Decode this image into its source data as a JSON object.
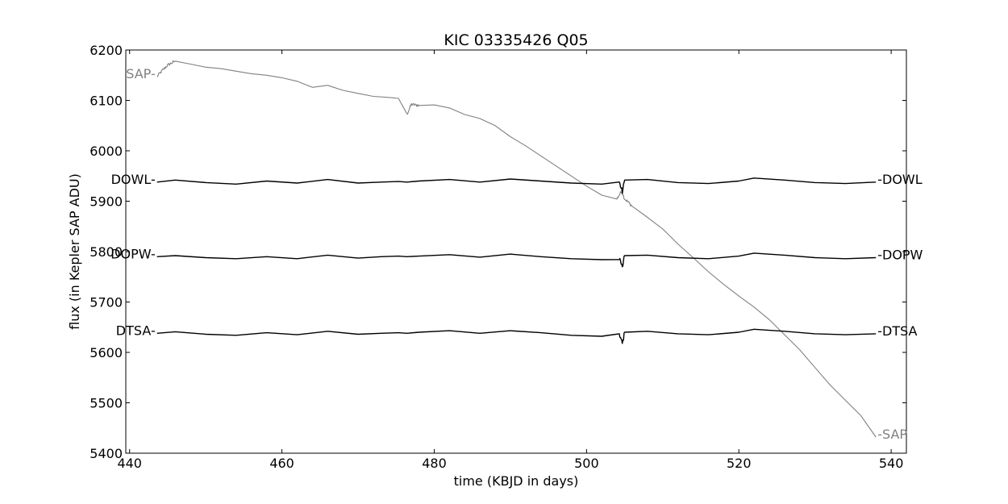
{
  "chart_data": {
    "type": "line",
    "title": "KIC 03335426 Q05",
    "xlabel": "time (KBJD in days)",
    "ylabel": "flux (in Kepler SAP ADU)",
    "xlim": [
      439.5,
      542
    ],
    "ylim": [
      5400,
      6200
    ],
    "xticks": [
      440,
      460,
      480,
      500,
      520,
      540
    ],
    "yticks": [
      5400,
      5500,
      5600,
      5700,
      5800,
      5900,
      6000,
      6100,
      6200
    ],
    "grid": false,
    "colors": {
      "SAP": "#808080",
      "DOWL": "#000000",
      "DOPW": "#000000",
      "DTSA": "#000000"
    },
    "series": [
      {
        "name": "SAP",
        "left_label": "SAP-",
        "right_label": "-SAP",
        "color": "#808080",
        "noise": 3,
        "x": [
          443.6,
          444.2,
          445.0,
          446.0,
          448.0,
          450.0,
          452.0,
          454.0,
          456.0,
          458.0,
          460.0,
          462.0,
          464.0,
          466.0,
          468.0,
          470.0,
          472.0,
          474.0,
          475.3,
          476.4,
          477.0,
          478.0,
          480.0,
          482.0,
          484.0,
          486.0,
          488.0,
          490.0,
          492.0,
          494.0,
          496.0,
          498.0,
          500.0,
          502.0,
          504.0,
          504.6,
          505.0,
          506.0,
          508.0,
          510.0,
          512.0,
          514.0,
          516.0,
          518.0,
          520.0,
          522.0,
          524.0,
          526.0,
          528.0,
          530.0,
          532.0,
          534.0,
          536.0,
          538.0
        ],
        "y": [
          6147,
          6158,
          6170,
          6178,
          6172,
          6166,
          6163,
          6158,
          6153,
          6150,
          6145,
          6138,
          6126,
          6130,
          6120,
          6114,
          6108,
          6106,
          6104,
          6072,
          6092,
          6090,
          6091,
          6085,
          6072,
          6064,
          6050,
          6028,
          6010,
          5990,
          5970,
          5950,
          5930,
          5912,
          5905,
          5920,
          5905,
          5890,
          5868,
          5845,
          5815,
          5788,
          5760,
          5735,
          5712,
          5690,
          5665,
          5635,
          5605,
          5570,
          5535,
          5505,
          5475,
          5432
        ]
      },
      {
        "name": "DOWL",
        "left_label": "DOWL-",
        "right_label": "-DOWL",
        "color": "#000000",
        "noise": 5,
        "x": [
          443.6,
          446.0,
          450.0,
          454.0,
          458.0,
          462.0,
          466.0,
          470.0,
          473.0,
          475.3,
          476.4,
          478.0,
          482.0,
          486.0,
          490.0,
          494.0,
          498.0,
          502.0,
          504.3,
          504.7,
          505.0,
          508.0,
          512.0,
          516.0,
          520.0,
          522.0,
          526.0,
          530.0,
          534.0,
          538.0
        ],
        "y": [
          5938,
          5942,
          5937,
          5934,
          5940,
          5936,
          5943,
          5936,
          5938,
          5939,
          5938,
          5940,
          5943,
          5938,
          5944,
          5940,
          5936,
          5934,
          5938,
          5918,
          5942,
          5943,
          5937,
          5935,
          5940,
          5946,
          5942,
          5937,
          5935,
          5938
        ]
      },
      {
        "name": "DOPW",
        "left_label": "DOPW-",
        "right_label": "-DOPW",
        "color": "#000000",
        "noise": 5,
        "x": [
          443.6,
          446.0,
          450.0,
          454.0,
          458.0,
          462.0,
          466.0,
          470.0,
          473.0,
          475.3,
          476.4,
          478.0,
          482.0,
          486.0,
          490.0,
          494.0,
          498.0,
          502.0,
          504.3,
          504.7,
          505.0,
          508.0,
          512.0,
          516.0,
          520.0,
          522.0,
          526.0,
          530.0,
          534.0,
          538.0
        ],
        "y": [
          5790,
          5792,
          5788,
          5786,
          5790,
          5786,
          5793,
          5787,
          5790,
          5791,
          5790,
          5791,
          5794,
          5789,
          5795,
          5790,
          5786,
          5784,
          5789,
          5768,
          5792,
          5793,
          5788,
          5786,
          5791,
          5797,
          5793,
          5788,
          5786,
          5788
        ]
      },
      {
        "name": "DTSA",
        "left_label": "DTSA-",
        "right_label": "-DTSA",
        "color": "#000000",
        "noise": 5,
        "x": [
          443.6,
          446.0,
          450.0,
          454.0,
          458.0,
          462.0,
          466.0,
          470.0,
          473.0,
          475.3,
          476.4,
          478.0,
          482.0,
          486.0,
          490.0,
          494.0,
          498.0,
          502.0,
          504.3,
          504.7,
          505.0,
          508.0,
          512.0,
          516.0,
          520.0,
          522.0,
          526.0,
          530.0,
          534.0,
          538.0
        ],
        "y": [
          5638,
          5641,
          5636,
          5634,
          5639,
          5635,
          5642,
          5636,
          5638,
          5639,
          5638,
          5640,
          5643,
          5638,
          5643,
          5639,
          5634,
          5632,
          5637,
          5617,
          5640,
          5642,
          5637,
          5635,
          5640,
          5646,
          5642,
          5637,
          5635,
          5637
        ]
      }
    ]
  }
}
